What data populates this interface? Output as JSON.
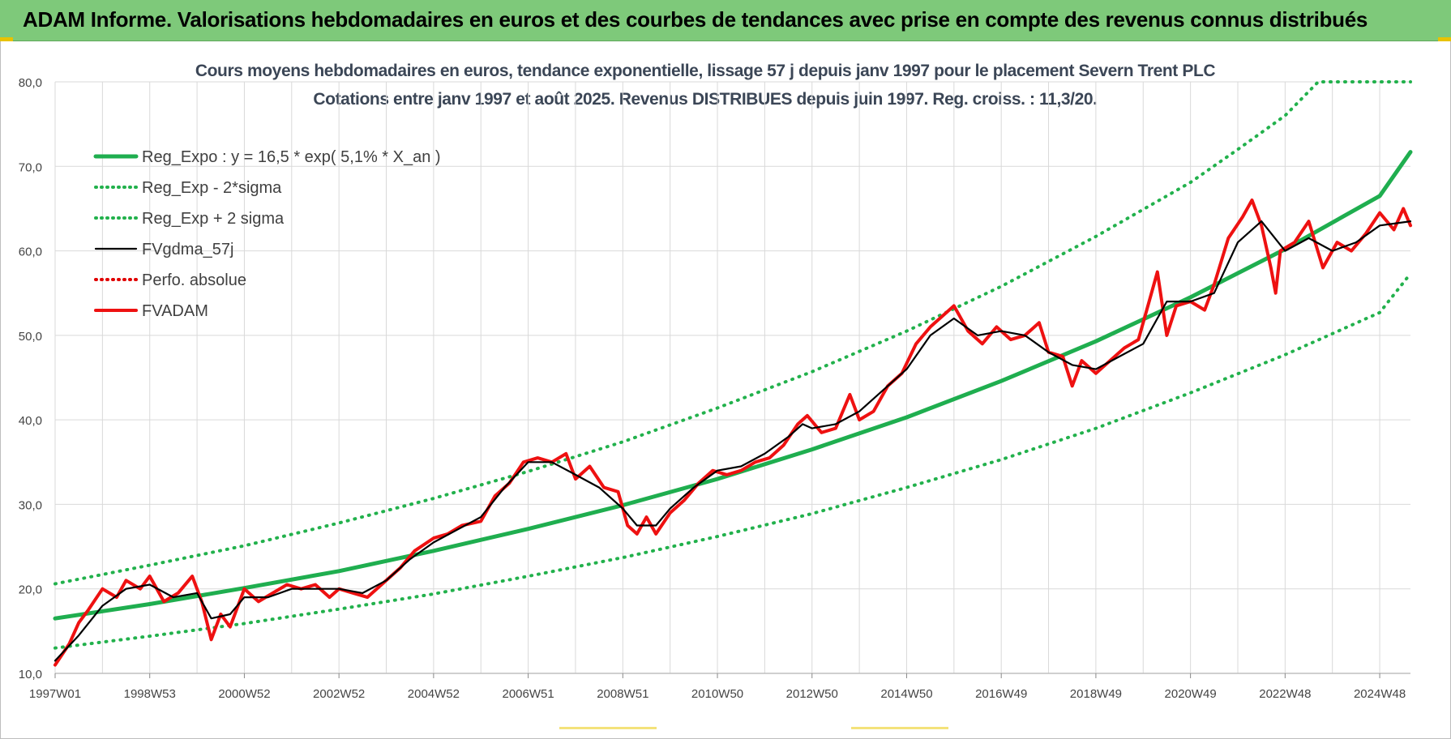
{
  "header": {
    "title": "ADAM Informe. Valorisations hebdomadaires en euros et des courbes de tendances avec prise en compte des revenus connus distribués"
  },
  "colors": {
    "banner": "#7ec97a",
    "trend": "#1fae4f",
    "sigma": "#22b14c",
    "fvgdma": "#000000",
    "perfo": "#e00000",
    "fvadam": "#ee1111",
    "grid": "#d9d9d9",
    "title_text": "#3b4656"
  },
  "chart_data": {
    "type": "line",
    "title": "Cours moyens hebdomadaires en euros, tendance exponentielle, lissage 57 j depuis janv 1997 pour le placement Severn Trent PLC",
    "subtitle": "Cotations entre janv 1997 et août 2025. Revenus DISTRIBUES depuis juin 1997. Reg. croiss. : 11,3/20.",
    "xlabel": "",
    "ylabel": "",
    "ylim": [
      10,
      80
    ],
    "xlim": [
      1997.0,
      2025.65
    ],
    "grid": true,
    "legend_position": "top-left",
    "y_ticks": [
      "10,0",
      "20,0",
      "30,0",
      "40,0",
      "50,0",
      "60,0",
      "70,0",
      "80,0"
    ],
    "x_ticks": [
      {
        "label": "1997W01",
        "x": 1997.0
      },
      {
        "label": "1998W53",
        "x": 1999.0
      },
      {
        "label": "2000W52",
        "x": 2001.0
      },
      {
        "label": "2002W52",
        "x": 2003.0
      },
      {
        "label": "2004W52",
        "x": 2005.0
      },
      {
        "label": "2006W51",
        "x": 2007.0
      },
      {
        "label": "2008W51",
        "x": 2009.0
      },
      {
        "label": "2010W50",
        "x": 2011.0
      },
      {
        "label": "2012W50",
        "x": 2013.0
      },
      {
        "label": "2014W50",
        "x": 2015.0
      },
      {
        "label": "2016W49",
        "x": 2017.0
      },
      {
        "label": "2018W49",
        "x": 2019.0
      },
      {
        "label": "2020W49",
        "x": 2021.0
      },
      {
        "label": "2022W48",
        "x": 2023.0
      },
      {
        "label": "2024W48",
        "x": 2025.0
      }
    ],
    "series": [
      {
        "name": "Reg_Expo : y = 16,5 * exp( 5,1% *  X_an )",
        "style": "solid-thick",
        "color": "#1fae4f",
        "points": [
          [
            1997.0,
            16.5
          ],
          [
            1999.0,
            18.2
          ],
          [
            2001.0,
            20.1
          ],
          [
            2003.0,
            22.1
          ],
          [
            2005.0,
            24.5
          ],
          [
            2007.0,
            27.1
          ],
          [
            2009.0,
            29.9
          ],
          [
            2011.0,
            33.0
          ],
          [
            2013.0,
            36.5
          ],
          [
            2015.0,
            40.3
          ],
          [
            2017.0,
            44.6
          ],
          [
            2019.0,
            49.3
          ],
          [
            2021.0,
            54.5
          ],
          [
            2023.0,
            60.2
          ],
          [
            2025.0,
            66.5
          ],
          [
            2025.65,
            71.7
          ]
        ]
      },
      {
        "name": "Reg_Exp - 2*sigma",
        "style": "dotted",
        "color": "#22b14c",
        "points": [
          [
            1997.0,
            13.0
          ],
          [
            1999.0,
            14.4
          ],
          [
            2001.0,
            15.9
          ],
          [
            2003.0,
            17.6
          ],
          [
            2005.0,
            19.4
          ],
          [
            2007.0,
            21.5
          ],
          [
            2009.0,
            23.7
          ],
          [
            2011.0,
            26.2
          ],
          [
            2013.0,
            28.9
          ],
          [
            2015.0,
            32.0
          ],
          [
            2017.0,
            35.3
          ],
          [
            2019.0,
            39.0
          ],
          [
            2021.0,
            43.2
          ],
          [
            2023.0,
            47.7
          ],
          [
            2025.0,
            52.7
          ],
          [
            2025.65,
            57.3
          ]
        ]
      },
      {
        "name": "Reg_Exp + 2 sigma",
        "style": "dotted",
        "color": "#22b14c",
        "points": [
          [
            1997.0,
            20.6
          ],
          [
            1999.0,
            22.8
          ],
          [
            2001.0,
            25.1
          ],
          [
            2003.0,
            27.8
          ],
          [
            2005.0,
            30.7
          ],
          [
            2007.0,
            33.9
          ],
          [
            2009.0,
            37.4
          ],
          [
            2011.0,
            41.4
          ],
          [
            2013.0,
            45.7
          ],
          [
            2015.0,
            50.5
          ],
          [
            2017.0,
            55.8
          ],
          [
            2019.0,
            61.7
          ],
          [
            2021.0,
            68.1
          ],
          [
            2022.0,
            72.0
          ],
          [
            2023.0,
            76.0
          ],
          [
            2023.7,
            80.0
          ],
          [
            2025.65,
            80.0
          ]
        ]
      },
      {
        "name": "FVgdma_57j",
        "style": "solid",
        "color": "#000000",
        "points": [
          [
            1997.0,
            11.5
          ],
          [
            1997.5,
            14.5
          ],
          [
            1998.0,
            18.0
          ],
          [
            1998.5,
            20.0
          ],
          [
            1999.0,
            20.5
          ],
          [
            1999.5,
            19.0
          ],
          [
            2000.0,
            19.5
          ],
          [
            2000.3,
            16.5
          ],
          [
            2000.7,
            17.0
          ],
          [
            2001.0,
            19.0
          ],
          [
            2001.5,
            19.0
          ],
          [
            2002.0,
            20.0
          ],
          [
            2002.5,
            20.0
          ],
          [
            2003.0,
            20.0
          ],
          [
            2003.5,
            19.5
          ],
          [
            2004.0,
            21.0
          ],
          [
            2004.5,
            23.5
          ],
          [
            2005.0,
            25.5
          ],
          [
            2005.5,
            27.0
          ],
          [
            2006.0,
            28.5
          ],
          [
            2006.5,
            32.0
          ],
          [
            2007.0,
            35.0
          ],
          [
            2007.5,
            35.0
          ],
          [
            2008.0,
            33.5
          ],
          [
            2008.5,
            32.0
          ],
          [
            2009.0,
            29.5
          ],
          [
            2009.3,
            27.5
          ],
          [
            2009.7,
            27.5
          ],
          [
            2010.0,
            29.5
          ],
          [
            2010.5,
            32.0
          ],
          [
            2011.0,
            34.0
          ],
          [
            2011.5,
            34.5
          ],
          [
            2012.0,
            36.0
          ],
          [
            2012.5,
            38.0
          ],
          [
            2012.8,
            39.5
          ],
          [
            2013.0,
            39.0
          ],
          [
            2013.5,
            39.5
          ],
          [
            2014.0,
            41.0
          ],
          [
            2014.5,
            43.5
          ],
          [
            2015.0,
            46.0
          ],
          [
            2015.5,
            50.0
          ],
          [
            2016.0,
            52.0
          ],
          [
            2016.5,
            50.0
          ],
          [
            2017.0,
            50.5
          ],
          [
            2017.5,
            50.0
          ],
          [
            2018.0,
            48.0
          ],
          [
            2018.5,
            46.5
          ],
          [
            2019.0,
            46.0
          ],
          [
            2019.5,
            47.5
          ],
          [
            2020.0,
            49.0
          ],
          [
            2020.5,
            54.0
          ],
          [
            2021.0,
            54.0
          ],
          [
            2021.5,
            55.0
          ],
          [
            2022.0,
            61.0
          ],
          [
            2022.5,
            63.5
          ],
          [
            2023.0,
            60.0
          ],
          [
            2023.5,
            61.5
          ],
          [
            2024.0,
            60.0
          ],
          [
            2024.5,
            61.0
          ],
          [
            2025.0,
            63.0
          ],
          [
            2025.65,
            63.5
          ]
        ]
      },
      {
        "name": "Perfo. absolue",
        "style": "dotted",
        "color": "#e00000",
        "points": []
      },
      {
        "name": "FVADAM",
        "style": "solid-thick",
        "color": "#ee1111",
        "points": [
          [
            1997.0,
            11.0
          ],
          [
            1997.3,
            13.5
          ],
          [
            1997.5,
            16.0
          ],
          [
            1997.7,
            17.5
          ],
          [
            1998.0,
            20.0
          ],
          [
            1998.3,
            19.0
          ],
          [
            1998.5,
            21.0
          ],
          [
            1998.8,
            20.0
          ],
          [
            1999.0,
            21.5
          ],
          [
            1999.3,
            18.5
          ],
          [
            1999.6,
            19.5
          ],
          [
            1999.9,
            21.5
          ],
          [
            2000.1,
            18.5
          ],
          [
            2000.3,
            14.0
          ],
          [
            2000.5,
            17.0
          ],
          [
            2000.7,
            15.5
          ],
          [
            2001.0,
            20.0
          ],
          [
            2001.3,
            18.5
          ],
          [
            2001.6,
            19.5
          ],
          [
            2001.9,
            20.5
          ],
          [
            2002.2,
            20.0
          ],
          [
            2002.5,
            20.5
          ],
          [
            2002.8,
            19.0
          ],
          [
            2003.0,
            20.0
          ],
          [
            2003.3,
            19.5
          ],
          [
            2003.6,
            19.0
          ],
          [
            2004.0,
            21.0
          ],
          [
            2004.3,
            22.5
          ],
          [
            2004.6,
            24.5
          ],
          [
            2005.0,
            26.0
          ],
          [
            2005.3,
            26.5
          ],
          [
            2005.6,
            27.5
          ],
          [
            2006.0,
            28.0
          ],
          [
            2006.3,
            31.0
          ],
          [
            2006.6,
            32.5
          ],
          [
            2006.9,
            35.0
          ],
          [
            2007.2,
            35.5
          ],
          [
            2007.5,
            35.0
          ],
          [
            2007.8,
            36.0
          ],
          [
            2008.0,
            33.0
          ],
          [
            2008.3,
            34.5
          ],
          [
            2008.6,
            32.0
          ],
          [
            2008.9,
            31.5
          ],
          [
            2009.1,
            27.5
          ],
          [
            2009.3,
            26.5
          ],
          [
            2009.5,
            28.5
          ],
          [
            2009.7,
            26.5
          ],
          [
            2010.0,
            29.0
          ],
          [
            2010.3,
            30.5
          ],
          [
            2010.6,
            32.5
          ],
          [
            2010.9,
            34.0
          ],
          [
            2011.2,
            33.5
          ],
          [
            2011.5,
            34.0
          ],
          [
            2011.8,
            35.0
          ],
          [
            2012.1,
            35.5
          ],
          [
            2012.4,
            37.0
          ],
          [
            2012.7,
            39.5
          ],
          [
            2012.9,
            40.5
          ],
          [
            2013.2,
            38.5
          ],
          [
            2013.5,
            39.0
          ],
          [
            2013.8,
            43.0
          ],
          [
            2014.0,
            40.0
          ],
          [
            2014.3,
            41.0
          ],
          [
            2014.6,
            44.0
          ],
          [
            2014.9,
            45.5
          ],
          [
            2015.2,
            49.0
          ],
          [
            2015.5,
            51.0
          ],
          [
            2015.8,
            52.5
          ],
          [
            2016.0,
            53.5
          ],
          [
            2016.3,
            50.5
          ],
          [
            2016.6,
            49.0
          ],
          [
            2016.9,
            51.0
          ],
          [
            2017.2,
            49.5
          ],
          [
            2017.5,
            50.0
          ],
          [
            2017.8,
            51.5
          ],
          [
            2018.0,
            48.0
          ],
          [
            2018.3,
            47.5
          ],
          [
            2018.5,
            44.0
          ],
          [
            2018.7,
            47.0
          ],
          [
            2019.0,
            45.5
          ],
          [
            2019.3,
            47.0
          ],
          [
            2019.6,
            48.5
          ],
          [
            2019.9,
            49.5
          ],
          [
            2020.1,
            53.5
          ],
          [
            2020.3,
            57.5
          ],
          [
            2020.5,
            50.0
          ],
          [
            2020.7,
            53.5
          ],
          [
            2021.0,
            54.0
          ],
          [
            2021.3,
            53.0
          ],
          [
            2021.5,
            56.0
          ],
          [
            2021.8,
            61.5
          ],
          [
            2022.1,
            64.0
          ],
          [
            2022.3,
            66.0
          ],
          [
            2022.5,
            63.0
          ],
          [
            2022.7,
            58.0
          ],
          [
            2022.8,
            55.0
          ],
          [
            2022.9,
            60.0
          ],
          [
            2023.2,
            61.0
          ],
          [
            2023.5,
            63.5
          ],
          [
            2023.8,
            58.0
          ],
          [
            2024.1,
            61.0
          ],
          [
            2024.4,
            60.0
          ],
          [
            2024.7,
            62.0
          ],
          [
            2025.0,
            64.5
          ],
          [
            2025.3,
            62.5
          ],
          [
            2025.5,
            65.0
          ],
          [
            2025.65,
            63.0
          ]
        ]
      }
    ]
  }
}
